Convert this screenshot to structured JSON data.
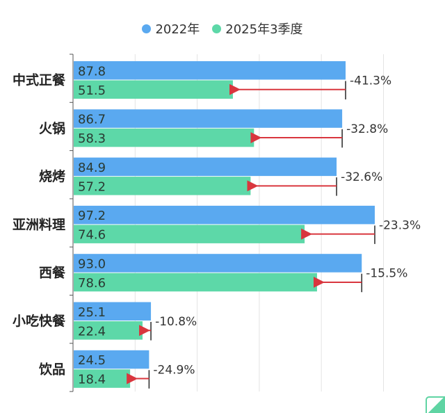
{
  "chart_data": {
    "type": "bar",
    "orientation": "horizontal",
    "categories": [
      "中式正餐",
      "火锅",
      "烧烤",
      "亚洲料理",
      "西餐",
      "小吃快餐",
      "饮品"
    ],
    "series": [
      {
        "name": "2022年",
        "color": "#5aa9f0",
        "values": [
          87.8,
          86.7,
          84.9,
          97.2,
          93.0,
          25.1,
          24.5
        ],
        "labels": [
          "87.8",
          "86.7",
          "84.9",
          "97.2",
          "93.0",
          "25.1",
          "24.5"
        ]
      },
      {
        "name": "2025年3季度",
        "color": "#5dd8a8",
        "values": [
          51.5,
          58.3,
          57.2,
          74.6,
          78.6,
          22.4,
          18.4
        ],
        "labels": [
          "51.5",
          "58.3",
          "57.2",
          "74.6",
          "78.6",
          "22.4",
          "18.4"
        ]
      }
    ],
    "annotations": [
      "-41.3%",
      "-32.8%",
      "-32.6%",
      "-23.3%",
      "-15.5%",
      "-10.8%",
      "-24.9%"
    ],
    "arrow_color": "#d9363e",
    "xlim": [
      0,
      100
    ],
    "x_gridlines": [
      20,
      40,
      60,
      80,
      100
    ],
    "grid": true,
    "legend": "top"
  }
}
